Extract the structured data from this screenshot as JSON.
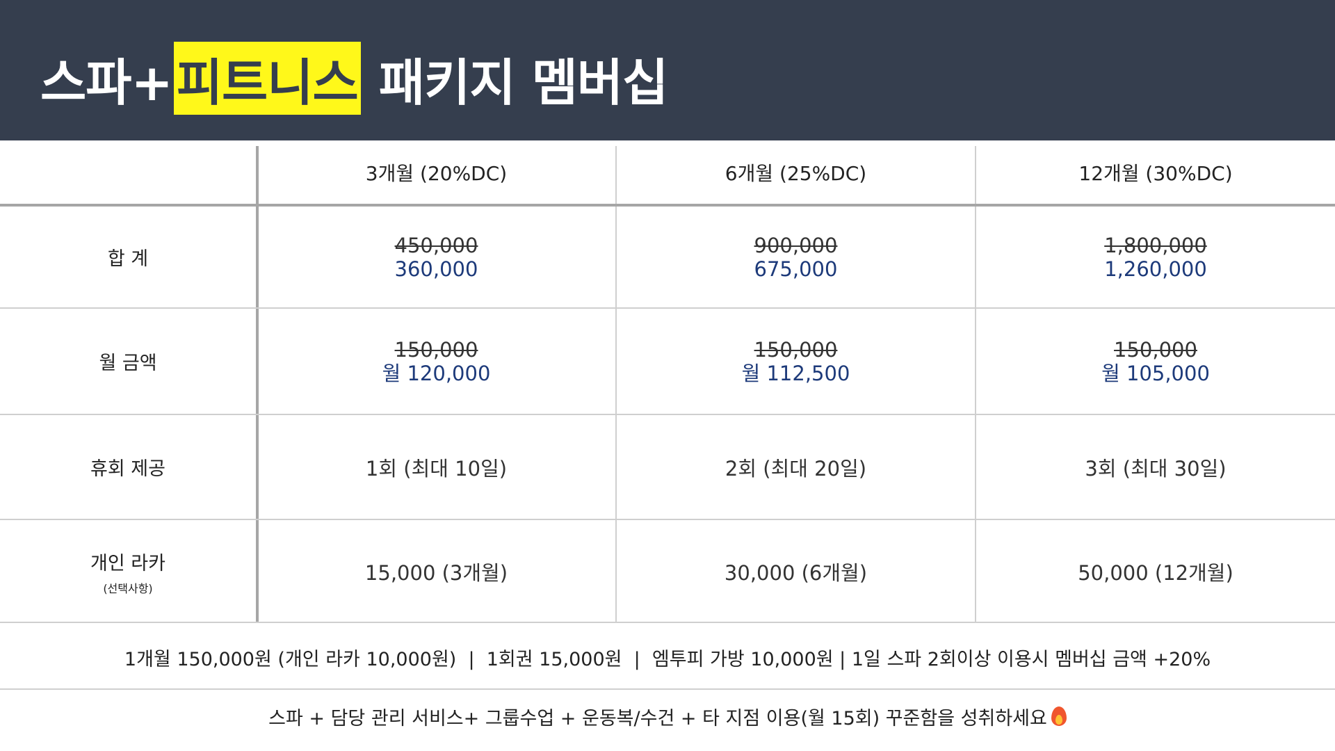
{
  "title": {
    "prefix": "스파+",
    "highlight": "피트니스",
    "suffix": " 패키지 멤버십"
  },
  "colors": {
    "header_bg": "#353e4e",
    "highlight_bg": "#fff81a",
    "discount_price": "#1d3a7a"
  },
  "table": {
    "columns": [
      "3개월 (20%DC)",
      "6개월 (25%DC)",
      "12개월 (30%DC)"
    ],
    "rows": {
      "total": {
        "label": "합 계",
        "cells": [
          {
            "old": "450,000",
            "new": "360,000"
          },
          {
            "old": "900,000",
            "new": "675,000"
          },
          {
            "old": "1,800,000",
            "new": "1,260,000"
          }
        ]
      },
      "monthly": {
        "label": "월 금액",
        "cells": [
          {
            "old": "150,000",
            "new": "월 120,000"
          },
          {
            "old": "150,000",
            "new": "월 112,500"
          },
          {
            "old": "150,000",
            "new": "월 105,000"
          }
        ]
      },
      "pause": {
        "label": "휴회 제공",
        "cells": [
          "1회 (최대 10일)",
          "2회 (최대 20일)",
          "3회 (최대 30일)"
        ]
      },
      "locker": {
        "label": "개인 라카",
        "sublabel": "(선택사항)",
        "cells": [
          "15,000 (3개월)",
          "30,000 (6개월)",
          "50,000 (12개월)"
        ]
      }
    }
  },
  "footer": {
    "line1": "1개월 150,000원 (개인 라카 10,000원)  |  1회권 15,000원  |  엠투피 가방 10,000원 | 1일 스파 2회이상 이용시 멤버십 금액 +20%",
    "line2": "스파 + 담당 관리 서비스+ 그룹수업 + 운동복/수건 + 타 지점 이용(월 15회) 꾸준함을 성취하세요",
    "line2_icon": "fire-icon"
  }
}
